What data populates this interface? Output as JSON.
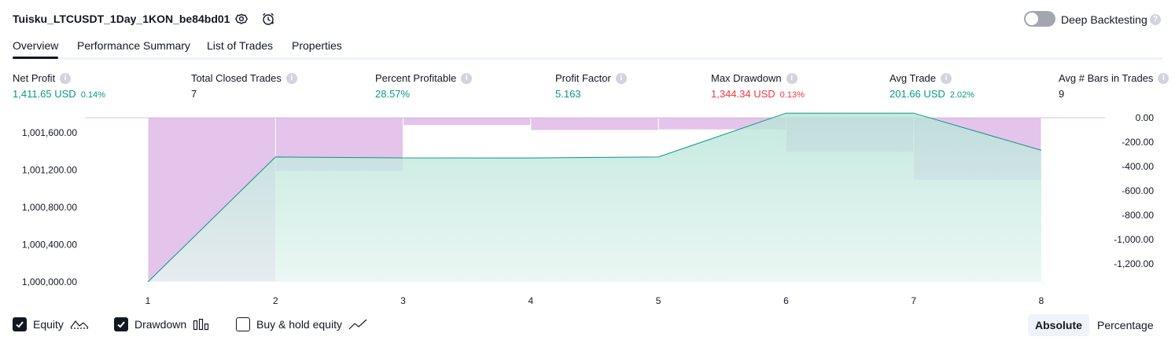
{
  "header": {
    "strategy_name": "Tuisku_LTCUSDT_1Day_1KON_be84bd01",
    "settings_icon": "gear-icon",
    "alert_icon": "alarm-clock-icon",
    "deep_backtesting_label": "Deep Backtesting",
    "deep_backtesting_enabled": false
  },
  "tabs": [
    {
      "label": "Overview",
      "active": true
    },
    {
      "label": "Performance Summary",
      "active": false
    },
    {
      "label": "List of Trades",
      "active": false
    },
    {
      "label": "Properties",
      "active": false
    }
  ],
  "metrics": [
    {
      "label": "Net Profit",
      "value": "1,411.65 USD",
      "pct": "0.14%",
      "tone": "pos"
    },
    {
      "label": "Total Closed Trades",
      "value": "7",
      "pct": "",
      "tone": "neutral"
    },
    {
      "label": "Percent Profitable",
      "value": "28.57%",
      "pct": "",
      "tone": "pos"
    },
    {
      "label": "Profit Factor",
      "value": "5.163",
      "pct": "",
      "tone": "pos"
    },
    {
      "label": "Max Drawdown",
      "value": "1,344.34 USD",
      "pct": "0.13%",
      "tone": "neg"
    },
    {
      "label": "Avg Trade",
      "value": "201.66 USD",
      "pct": "2.02%",
      "tone": "pos"
    },
    {
      "label": "Avg # Bars in Trades",
      "value": "9",
      "pct": "",
      "tone": "neutral"
    }
  ],
  "chart_data": {
    "type": "line",
    "x": [
      1,
      2,
      3,
      4,
      5,
      6,
      7,
      8
    ],
    "x_tick_labels": [
      "1",
      "2",
      "3",
      "4",
      "5",
      "6",
      "7",
      "8"
    ],
    "equity_series": {
      "values": [
        1000000.0,
        1001340.0,
        1001330.0,
        1001330.0,
        1001340.0,
        1001810.0,
        1001810.0,
        1001411.65
      ],
      "color": "#089981",
      "fill": "#c9ebe4"
    },
    "drawdown_series": {
      "x": [
        1.5,
        2.5,
        3.5,
        4.5,
        5.5,
        6.5,
        7.5
      ],
      "values": [
        -1344.34,
        -440.0,
        -60.0,
        -100.0,
        -95.0,
        -280.0,
        -510.0
      ],
      "color": "#ce93d8",
      "opacity": 0.55
    },
    "left_axis": {
      "ticks": [
        "1,001,600.00",
        "1,001,200.00",
        "1,000,800.00",
        "1,000,400.00",
        "1,000,000.00"
      ],
      "tick_values": [
        1001600,
        1001200,
        1000800,
        1000400,
        1000000
      ],
      "range": [
        1000000,
        1001760
      ]
    },
    "right_axis": {
      "ticks": [
        "0.00",
        "-200.00",
        "-400.00",
        "-600.00",
        "-800.00",
        "-1,000.00",
        "-1,200.00"
      ],
      "tick_values": [
        0,
        -200,
        -400,
        -600,
        -800,
        -1000,
        -1200
      ],
      "range": [
        -1350,
        0
      ]
    },
    "grid": false
  },
  "legend": {
    "equity": {
      "label": "Equity",
      "checked": true,
      "icon": "equity-line-icon"
    },
    "drawdown": {
      "label": "Drawdown",
      "checked": true,
      "icon": "drawdown-bars-icon"
    },
    "buyhold": {
      "label": "Buy & hold equity",
      "checked": false,
      "icon": "buyhold-line-icon"
    }
  },
  "view_toggle": {
    "options": [
      "Absolute",
      "Percentage"
    ],
    "selected": "Absolute"
  }
}
